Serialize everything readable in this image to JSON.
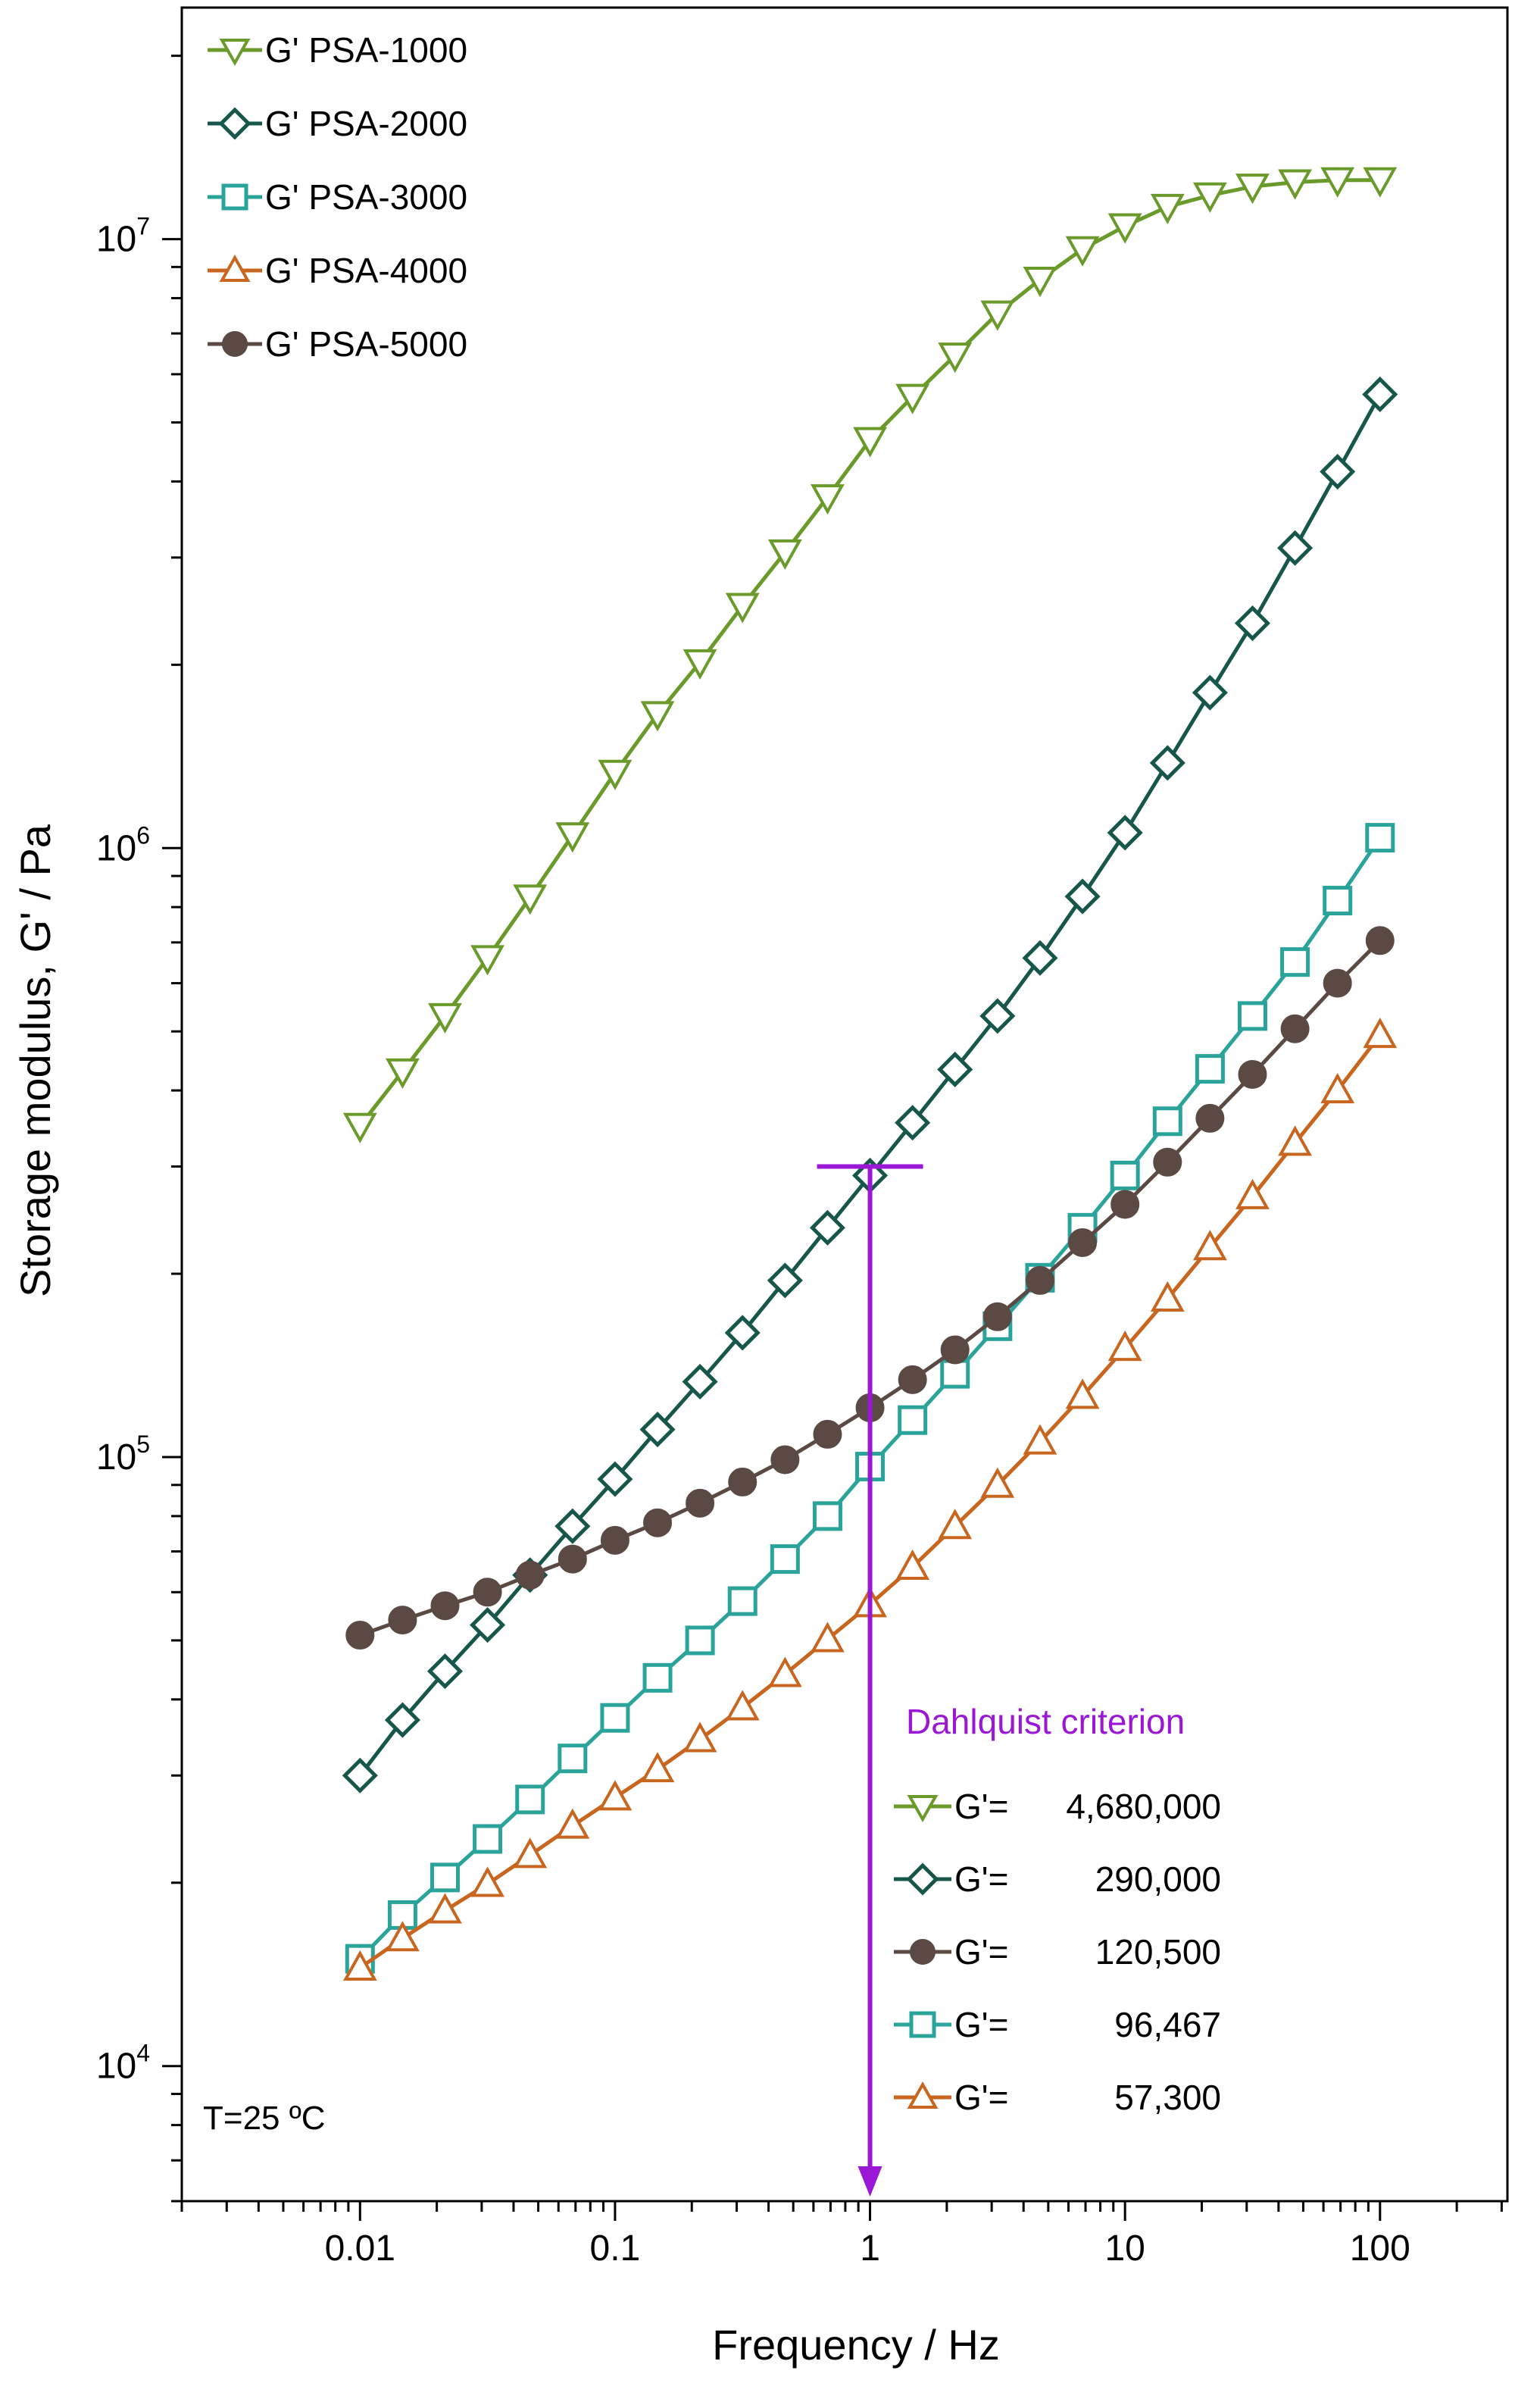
{
  "chart_data": {
    "type": "line",
    "xscale": "log",
    "yscale": "log",
    "xlabel": "Frequency / Hz",
    "ylabel": "Storage modulus, G' / Pa",
    "xlim": [
      0.002,
      316
    ],
    "ylim": [
      6000,
      24000000
    ],
    "xticks": [
      {
        "value": 0.01,
        "label": "0.01"
      },
      {
        "value": 0.1,
        "label": "0.1"
      },
      {
        "value": 1,
        "label": "1"
      },
      {
        "value": 10,
        "label": "10"
      },
      {
        "value": 100,
        "label": "100"
      }
    ],
    "yticks": [
      {
        "value": 10000,
        "base": "10",
        "exp": "4"
      },
      {
        "value": 100000,
        "base": "10",
        "exp": "5"
      },
      {
        "value": 1000000,
        "base": "10",
        "exp": "6"
      },
      {
        "value": 10000000,
        "base": "10",
        "exp": "7"
      }
    ],
    "x": [
      0.01,
      0.01468,
      0.02154,
      0.03162,
      0.04642,
      0.06813,
      0.1,
      0.1468,
      0.2154,
      0.3162,
      0.4642,
      0.6813,
      1,
      1.468,
      2.154,
      3.162,
      4.642,
      6.813,
      10,
      14.68,
      21.54,
      31.62,
      46.42,
      68.13,
      100
    ],
    "series": [
      {
        "name": "G' PSA-1000",
        "marker": "triangle-down",
        "color": "#6a9a2a",
        "values": [
          350000,
          430000,
          530000,
          660000,
          830000,
          1050000,
          1330000,
          1660000,
          2020000,
          2500000,
          3060000,
          3770000,
          4680000,
          5510000,
          6440000,
          7550000,
          8580000,
          9630000,
          10500000,
          11300000,
          11800000,
          12200000,
          12400000,
          12500000,
          12500000
        ]
      },
      {
        "name": "G' PSA-2000",
        "marker": "diamond",
        "color": "#17564a",
        "values": [
          30000,
          37000,
          44500,
          53000,
          64000,
          77000,
          92000,
          111000,
          133000,
          160000,
          195000,
          238000,
          290000,
          354000,
          433000,
          530000,
          660000,
          833000,
          1060000,
          1380000,
          1800000,
          2340000,
          3110000,
          4150000,
          5560000
        ]
      },
      {
        "name": "G' PSA-3000",
        "marker": "square",
        "color": "#2aa39a",
        "values": [
          15000,
          17700,
          20400,
          23600,
          27400,
          32000,
          37300,
          43400,
          50000,
          58000,
          68000,
          80000,
          96467,
          115000,
          137000,
          164000,
          197000,
          238000,
          290000,
          356000,
          434000,
          530000,
          650000,
          820000,
          1040000
        ]
      },
      {
        "name": "G' PSA-4000",
        "marker": "triangle-up",
        "color": "#c8661f",
        "values": [
          14500,
          16200,
          18000,
          19900,
          22200,
          24800,
          27600,
          30700,
          34400,
          38800,
          44000,
          50200,
          57300,
          66000,
          77000,
          90000,
          106000,
          126000,
          151000,
          182000,
          221000,
          268000,
          328000,
          400000,
          493000
        ]
      },
      {
        "name": "G' PSA-5000",
        "marker": "circle",
        "color": "#5b4a43",
        "values": [
          51000,
          54000,
          57000,
          60000,
          64000,
          68000,
          73000,
          78000,
          84000,
          91000,
          99000,
          109000,
          120500,
          134000,
          150000,
          170000,
          195000,
          225000,
          260000,
          305000,
          360000,
          425000,
          505000,
          600000,
          705000
        ]
      }
    ],
    "legend_position": "top-left",
    "annotation": {
      "label": "Dahlquist criterion",
      "color": "#9b17d6",
      "x": 1,
      "y": 300000,
      "entries": [
        {
          "marker": "triangle-down",
          "color": "#6a9a2a",
          "label": "G'=",
          "value": "4,680,000"
        },
        {
          "marker": "diamond",
          "color": "#17564a",
          "label": "G'=",
          "value": "290,000"
        },
        {
          "marker": "circle",
          "color": "#5b4a43",
          "label": "G'=",
          "value": "120,500"
        },
        {
          "marker": "square",
          "color": "#2aa39a",
          "label": "G'=",
          "value": "96,467"
        },
        {
          "marker": "triangle-up",
          "color": "#c8661f",
          "label": "G'=",
          "value": "57,300"
        }
      ]
    },
    "temperature_label": "T=25 ºC"
  }
}
